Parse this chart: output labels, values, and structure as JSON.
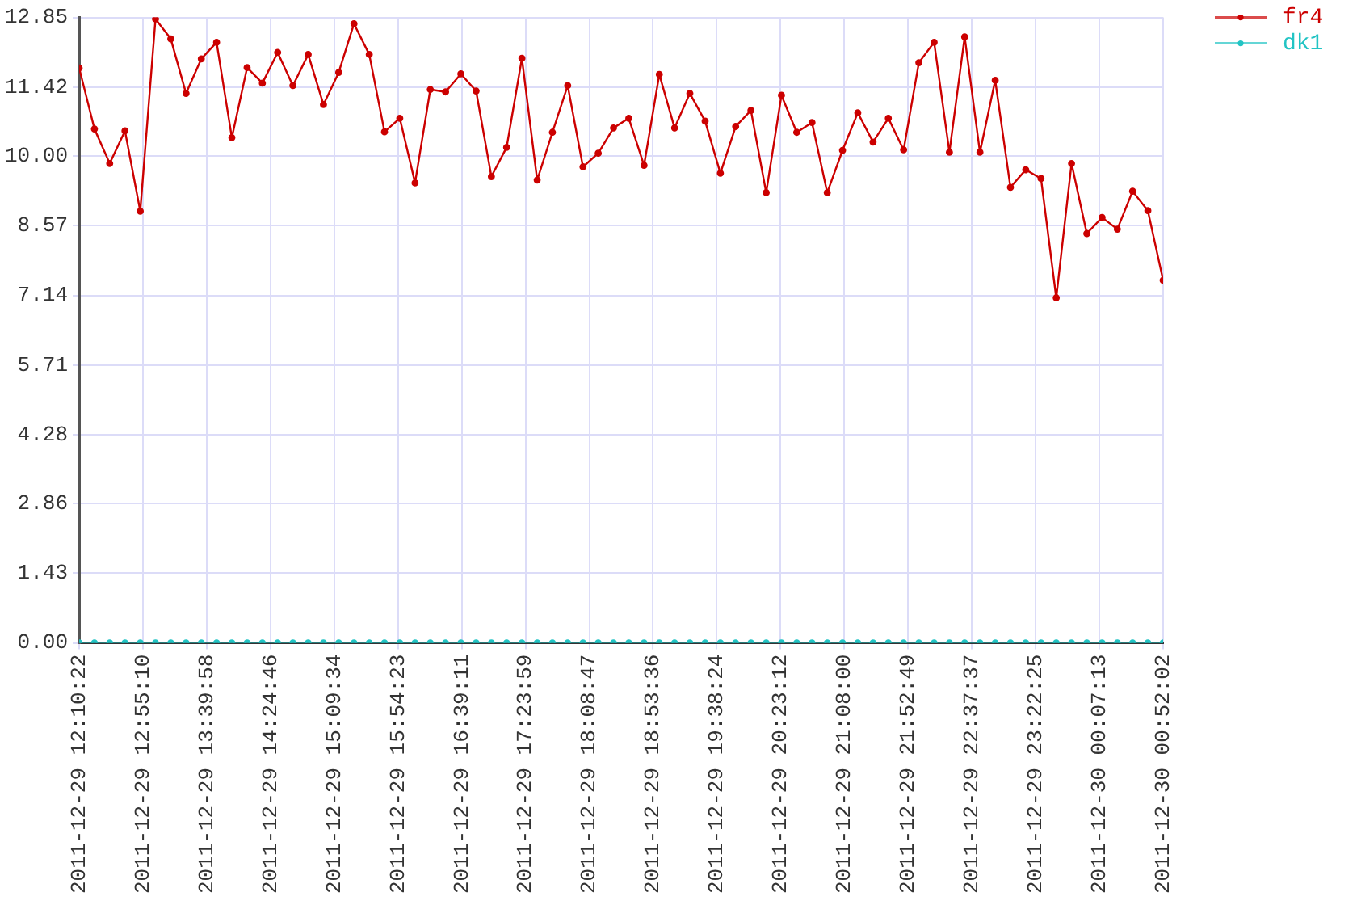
{
  "chart_data": {
    "type": "line",
    "x": [
      "2011-12-29T12:10:22",
      "2011-12-29T12:21:06",
      "2011-12-29T12:31:49",
      "2011-12-29T12:42:33",
      "2011-12-29T12:53:17",
      "2011-12-29T13:04:00",
      "2011-12-29T13:14:44",
      "2011-12-29T13:25:28",
      "2011-12-29T13:36:11",
      "2011-12-29T13:46:55",
      "2011-12-29T13:57:39",
      "2011-12-29T14:08:22",
      "2011-12-29T14:19:06",
      "2011-12-29T14:29:50",
      "2011-12-29T14:40:33",
      "2011-12-29T14:51:17",
      "2011-12-29T15:02:01",
      "2011-12-29T15:12:44",
      "2011-12-29T15:23:28",
      "2011-12-29T15:34:12",
      "2011-12-29T15:44:55",
      "2011-12-29T15:55:39",
      "2011-12-29T16:06:23",
      "2011-12-29T16:17:06",
      "2011-12-29T16:27:50",
      "2011-12-29T16:38:34",
      "2011-12-29T16:49:17",
      "2011-12-29T17:00:01",
      "2011-12-29T17:10:44",
      "2011-12-29T17:21:28",
      "2011-12-29T17:32:12",
      "2011-12-29T17:42:55",
      "2011-12-29T17:53:39",
      "2011-12-29T18:04:23",
      "2011-12-29T18:15:06",
      "2011-12-29T18:25:50",
      "2011-12-29T18:36:34",
      "2011-12-29T18:47:17",
      "2011-12-29T18:58:01",
      "2011-12-29T19:08:45",
      "2011-12-29T19:19:28",
      "2011-12-29T19:30:12",
      "2011-12-29T19:40:56",
      "2011-12-29T19:51:39",
      "2011-12-29T20:02:23",
      "2011-12-29T20:13:07",
      "2011-12-29T20:23:50",
      "2011-12-29T20:34:34",
      "2011-12-29T20:45:18",
      "2011-12-29T20:56:01",
      "2011-12-29T21:06:45",
      "2011-12-29T21:17:29",
      "2011-12-29T21:28:12",
      "2011-12-29T21:38:56",
      "2011-12-29T21:49:40",
      "2011-12-29T22:00:23",
      "2011-12-29T22:11:07",
      "2011-12-29T22:21:51",
      "2011-12-29T22:32:34",
      "2011-12-29T22:43:18",
      "2011-12-29T22:54:02",
      "2011-12-29T23:04:45",
      "2011-12-29T23:15:29",
      "2011-12-29T23:26:13",
      "2011-12-29T23:36:56",
      "2011-12-29T23:47:40",
      "2011-12-29T23:58:24",
      "2011-12-30T00:09:07",
      "2011-12-30T00:19:51",
      "2011-12-30T00:30:35",
      "2011-12-30T00:41:18",
      "2011-12-30T00:52:02"
    ],
    "series": [
      {
        "name": "fr4",
        "color": "#cc0000",
        "values": [
          11.81,
          10.56,
          9.85,
          10.52,
          8.87,
          12.82,
          12.41,
          11.29,
          12.0,
          12.34,
          10.38,
          11.82,
          11.5,
          12.13,
          11.45,
          12.09,
          11.06,
          11.72,
          12.72,
          12.09,
          10.5,
          10.78,
          9.45,
          11.37,
          11.32,
          11.69,
          11.34,
          9.58,
          10.18,
          12.01,
          9.51,
          10.49,
          11.45,
          9.78,
          10.06,
          10.58,
          10.78,
          9.81,
          11.68,
          10.58,
          11.29,
          10.72,
          9.65,
          10.61,
          10.94,
          9.25,
          11.25,
          10.49,
          10.69,
          9.25,
          10.12,
          10.89,
          10.29,
          10.78,
          10.13,
          11.92,
          12.34,
          10.08,
          12.45,
          10.08,
          11.56,
          9.36,
          9.72,
          9.54,
          7.09,
          9.85,
          8.41,
          8.74,
          8.5,
          9.28,
          8.88,
          7.45
        ]
      },
      {
        "name": "dk1",
        "color": "#22c4c4",
        "values": [
          0,
          0,
          0,
          0,
          0,
          0,
          0,
          0,
          0,
          0,
          0,
          0,
          0,
          0,
          0,
          0,
          0,
          0,
          0,
          0,
          0,
          0,
          0,
          0,
          0,
          0,
          0,
          0,
          0,
          0,
          0,
          0,
          0,
          0,
          0,
          0,
          0,
          0,
          0,
          0,
          0,
          0,
          0,
          0,
          0,
          0,
          0,
          0,
          0,
          0,
          0,
          0,
          0,
          0,
          0,
          0,
          0,
          0,
          0,
          0,
          0,
          0,
          0,
          0,
          0,
          0,
          0,
          0,
          0,
          0,
          0,
          0
        ]
      }
    ],
    "xlim": [
      "2011-12-29T12:10:22",
      "2011-12-30T00:52:02"
    ],
    "xticks": [
      {
        "value": "2011-12-29T12:10:22",
        "label": "2011-12-29 12:10:22"
      },
      {
        "value": "2011-12-29T12:55:10",
        "label": "2011-12-29 12:55:10"
      },
      {
        "value": "2011-12-29T13:39:58",
        "label": "2011-12-29 13:39:58"
      },
      {
        "value": "2011-12-29T14:24:46",
        "label": "2011-12-29 14:24:46"
      },
      {
        "value": "2011-12-29T15:09:34",
        "label": "2011-12-29 15:09:34"
      },
      {
        "value": "2011-12-29T15:54:23",
        "label": "2011-12-29 15:54:23"
      },
      {
        "value": "2011-12-29T16:39:11",
        "label": "2011-12-29 16:39:11"
      },
      {
        "value": "2011-12-29T17:23:59",
        "label": "2011-12-29 17:23:59"
      },
      {
        "value": "2011-12-29T18:08:47",
        "label": "2011-12-29 18:08:47"
      },
      {
        "value": "2011-12-29T18:53:36",
        "label": "2011-12-29 18:53:36"
      },
      {
        "value": "2011-12-29T19:38:24",
        "label": "2011-12-29 19:38:24"
      },
      {
        "value": "2011-12-29T20:23:12",
        "label": "2011-12-29 20:23:12"
      },
      {
        "value": "2011-12-29T21:08:00",
        "label": "2011-12-29 21:08:00"
      },
      {
        "value": "2011-12-29T21:52:49",
        "label": "2011-12-29 21:52:49"
      },
      {
        "value": "2011-12-29T22:37:37",
        "label": "2011-12-29 22:37:37"
      },
      {
        "value": "2011-12-29T23:22:25",
        "label": "2011-12-29 23:22:25"
      },
      {
        "value": "2011-12-30T00:07:13",
        "label": "2011-12-30 00:07:13"
      },
      {
        "value": "2011-12-30T00:52:02",
        "label": "2011-12-30 00:52:02"
      }
    ],
    "ylim": [
      0,
      12.85
    ],
    "yticks": [
      {
        "value": 0,
        "label": "0.00"
      },
      1.43,
      2.86,
      4.28,
      5.71,
      7.14,
      8.57,
      {
        "value": 10,
        "label": "10.00"
      },
      11.42,
      12.85
    ],
    "grid": true,
    "legend": "top right",
    "marker": "circle",
    "line_style": "solid"
  }
}
